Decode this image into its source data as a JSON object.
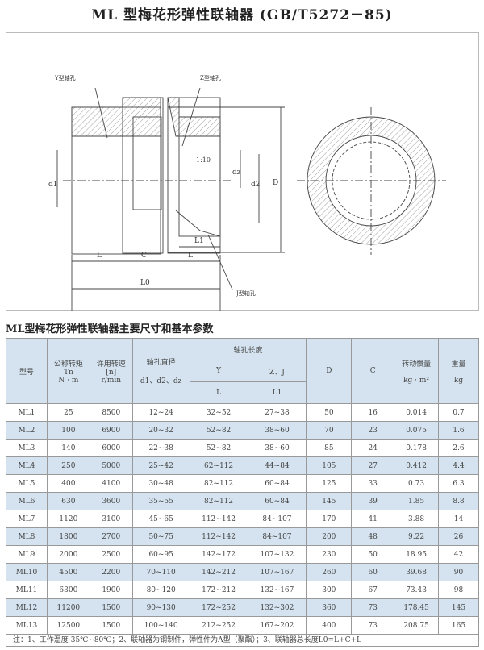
{
  "title": "ML 型梅花形弹性联轴器 (GB/T5272－85)",
  "drawing": {
    "labels": {
      "y_bore": "Y型轴孔",
      "z_bore": "Z型轴孔",
      "j_bore": "J型轴孔",
      "taper": "1:10",
      "d1": "d1",
      "dz": "dz",
      "d2": "d2",
      "D": "D",
      "L": "L",
      "C": "C",
      "L1": "L1",
      "L0": "L0"
    }
  },
  "table": {
    "title": "ML型梅花形弹性联轴器主要尺寸和基本参数",
    "headers": {
      "model": "型号",
      "torque": [
        "公称转矩",
        "Tn",
        "N · m"
      ],
      "speed": [
        "许用转速",
        "[n]",
        "r/min"
      ],
      "bore": [
        "轴孔直径",
        "d1、d2、dz"
      ],
      "bore_length": "轴孔长度",
      "y": "Y",
      "zj": "Z、J",
      "L": "L",
      "L1": "L1",
      "D": "D",
      "C": "C",
      "inertia": [
        "转动惯量",
        "kg · m²"
      ],
      "weight": [
        "重量",
        "kg"
      ]
    },
    "rows": [
      [
        "ML1",
        "25",
        "8500",
        "12~24",
        "32~52",
        "27~38",
        "50",
        "16",
        "0.014",
        "0.7"
      ],
      [
        "ML2",
        "100",
        "6900",
        "20~32",
        "52~82",
        "38~60",
        "70",
        "23",
        "0.075",
        "1.6"
      ],
      [
        "ML3",
        "140",
        "6000",
        "22~38",
        "52~82",
        "38~60",
        "85",
        "24",
        "0.178",
        "2.6"
      ],
      [
        "ML4",
        "250",
        "5000",
        "25~42",
        "62~112",
        "44~84",
        "105",
        "27",
        "0.412",
        "4.4"
      ],
      [
        "ML5",
        "400",
        "4100",
        "30~48",
        "82~112",
        "60~84",
        "125",
        "33",
        "0.73",
        "6.3"
      ],
      [
        "ML6",
        "630",
        "3600",
        "35~55",
        "82~112",
        "60~84",
        "145",
        "39",
        "1.85",
        "8.8"
      ],
      [
        "ML7",
        "1120",
        "3100",
        "45~65",
        "112~142",
        "84~107",
        "170",
        "41",
        "3.88",
        "14"
      ],
      [
        "ML8",
        "1800",
        "2700",
        "50~75",
        "112~142",
        "84~107",
        "200",
        "48",
        "9.22",
        "26"
      ],
      [
        "ML9",
        "2000",
        "2500",
        "60~95",
        "142~172",
        "107~132",
        "230",
        "50",
        "18.95",
        "42"
      ],
      [
        "ML10",
        "4500",
        "2200",
        "70~110",
        "142~212",
        "107~167",
        "260",
        "60",
        "39.68",
        "90"
      ],
      [
        "ML11",
        "6300",
        "1900",
        "80~120",
        "172~212",
        "132~167",
        "300",
        "67",
        "73.43",
        "98"
      ],
      [
        "ML12",
        "11200",
        "1500",
        "90~130",
        "172~252",
        "132~302",
        "360",
        "73",
        "178.45",
        "145"
      ],
      [
        "ML13",
        "12500",
        "1500",
        "100~140",
        "212~252",
        "167~202",
        "400",
        "73",
        "208.75",
        "165"
      ]
    ],
    "note": "注：1、工作温度-35℃~80℃；2、联轴器为钢制件，弹性件为A型（聚酯）；3、联轴器总长度L0=L+C+L"
  }
}
